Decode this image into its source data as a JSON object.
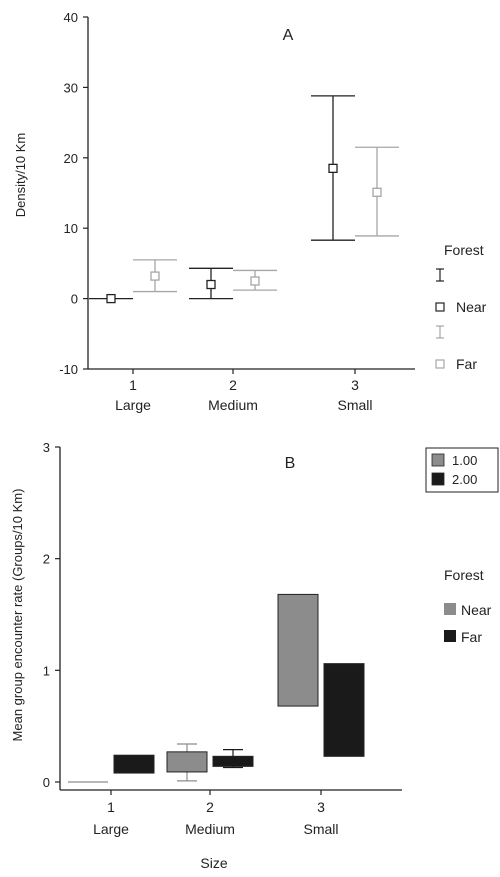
{
  "chart_data": [
    {
      "type": "error_bar",
      "title": "A",
      "ylabel": "Density/10 Km",
      "xlabel": "",
      "ylim": [
        -10,
        40
      ],
      "yticks": [
        -10,
        0,
        10,
        20,
        30,
        40
      ],
      "ytick_labels": [
        "-10",
        "0",
        "10",
        "20",
        "30",
        "40"
      ],
      "categories": [
        {
          "num": "1",
          "name": "Large"
        },
        {
          "num": "2",
          "name": "Medium"
        },
        {
          "num": "3",
          "name": "Small"
        }
      ],
      "legend": {
        "title": "Forest",
        "position": "right",
        "entries": [
          {
            "series": "Near",
            "label": "Near",
            "color": "#222222"
          },
          {
            "series": "Far",
            "label": "Far",
            "color": "#a6a6a6"
          }
        ]
      },
      "series": [
        {
          "name": "Near",
          "color": "#222222",
          "mean": [
            0,
            2,
            18.5
          ],
          "low": [
            0,
            0,
            8.3
          ],
          "high": [
            0,
            4.3,
            28.8
          ]
        },
        {
          "name": "Far",
          "color": "#a6a6a6",
          "mean": [
            3.2,
            2.5,
            15.1
          ],
          "low": [
            1,
            1.2,
            8.9
          ],
          "high": [
            5.5,
            4.0,
            21.5
          ]
        }
      ]
    },
    {
      "type": "floating_bar",
      "title": "B",
      "ylabel": "Mean group encounter rate (Groups/10 Km)",
      "xlabel": "Size",
      "ylim": [
        0,
        3
      ],
      "yticks": [
        0,
        1,
        2,
        3
      ],
      "ytick_labels": [
        "0",
        "1",
        "2",
        "3"
      ],
      "categories": [
        {
          "num": "1",
          "name": "Large"
        },
        {
          "num": "2",
          "name": "Medium"
        },
        {
          "num": "3",
          "name": "Small"
        }
      ],
      "legend": {
        "title": "Forest",
        "position": "right",
        "entries": [
          {
            "series": "Near",
            "label": "Near",
            "color": "#8c8c8c"
          },
          {
            "series": "Far",
            "label": "Far",
            "color": "#1a1a1a"
          }
        ]
      },
      "key_box": {
        "position": "top-right",
        "entries": [
          {
            "label": "1.00",
            "color": "#8c8c8c"
          },
          {
            "label": "2.00",
            "color": "#1a1a1a"
          }
        ]
      },
      "series": [
        {
          "name": "Near",
          "color": "#8c8c8c",
          "low": [
            0,
            0.09,
            0.68
          ],
          "high": [
            0,
            0.27,
            1.68
          ],
          "whisker_low": [
            null,
            0.01,
            null
          ],
          "whisker_high": [
            null,
            0.34,
            null
          ]
        },
        {
          "name": "Far",
          "color": "#1a1a1a",
          "low": [
            0.08,
            0.14,
            0.23
          ],
          "high": [
            0.24,
            0.23,
            1.06
          ],
          "whisker_low": [
            null,
            0.13,
            null
          ],
          "whisker_high": [
            null,
            0.29,
            null
          ]
        }
      ]
    }
  ]
}
